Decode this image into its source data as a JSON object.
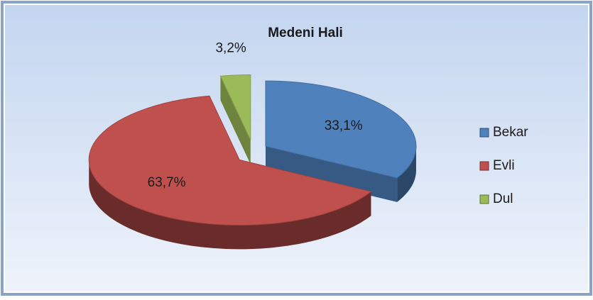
{
  "chart_data": {
    "type": "pie",
    "title": "Medeni Hali",
    "categories": [
      "Bekar",
      "Evli",
      "Dul"
    ],
    "values": [
      33.1,
      63.7,
      3.2
    ],
    "value_labels": [
      "33,1%",
      "63,7%",
      "3,2%"
    ],
    "colors": [
      "#4f81bd",
      "#c0504d",
      "#9bbb59"
    ],
    "legend": "right"
  }
}
